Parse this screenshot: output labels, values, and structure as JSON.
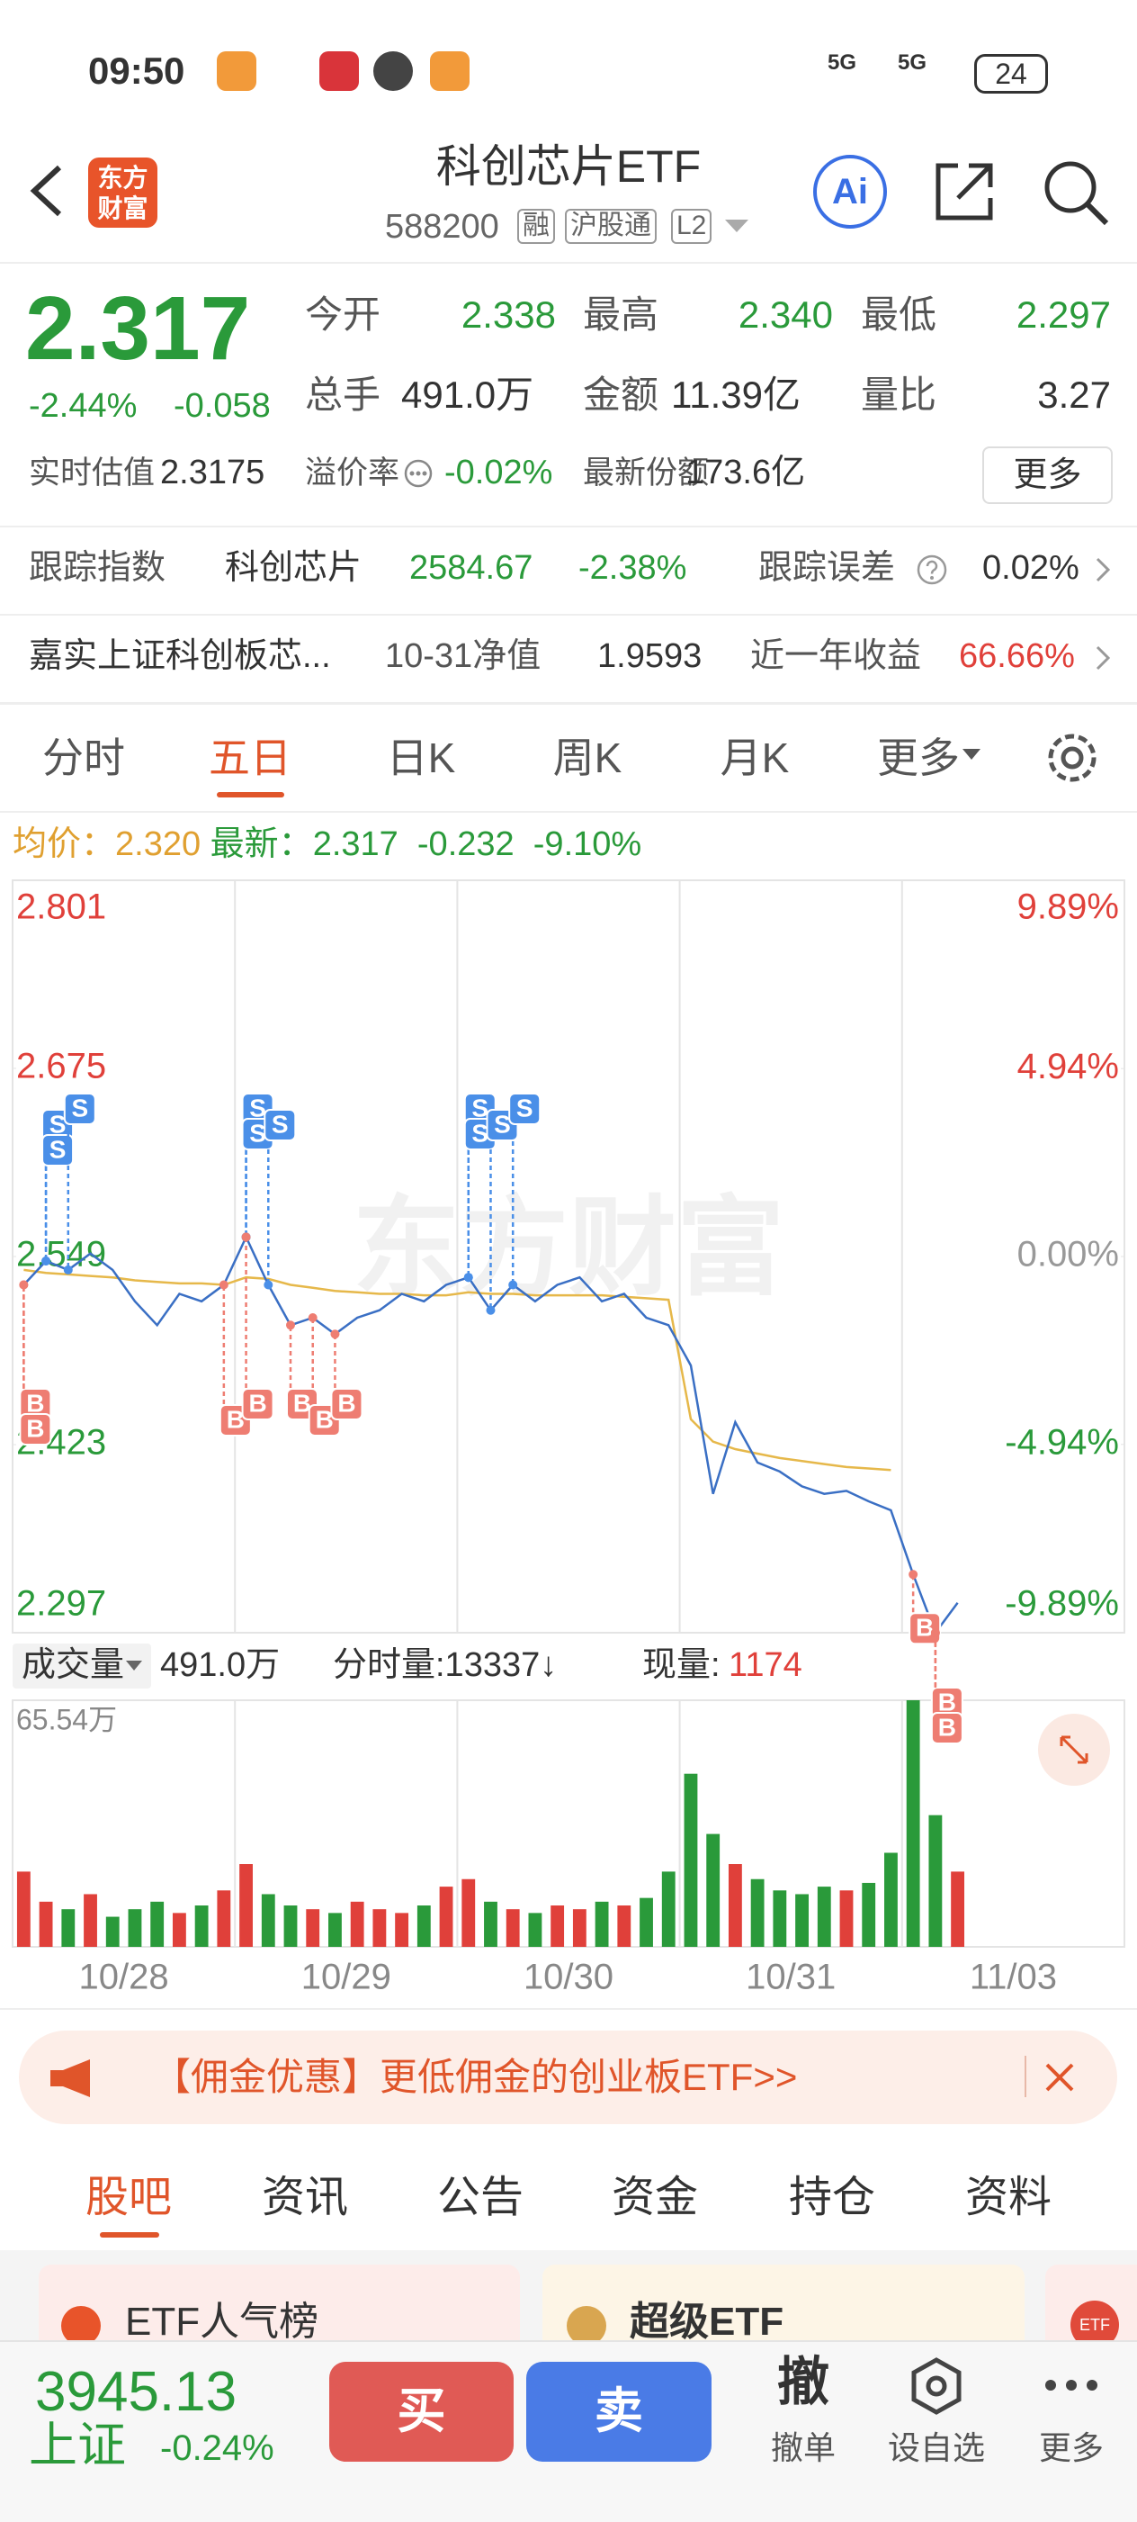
{
  "status_bar": {
    "time": "09:50",
    "network_1": "5G",
    "network_2": "5G",
    "battery": "24"
  },
  "header": {
    "logo_line_1": "东方",
    "logo_line_2": "财富",
    "title": "科创芯片ETF",
    "code": "588200",
    "badges": [
      "融",
      "沪股通",
      "L2"
    ],
    "ai_button": "Ai"
  },
  "quote": {
    "price": "2.317",
    "change_pct": "-2.44%",
    "change": "-0.058",
    "stats": [
      {
        "label": "今开",
        "value": "2.338"
      },
      {
        "label": "最高",
        "value": "2.340"
      },
      {
        "label": "最低",
        "value": "2.297"
      },
      {
        "label": "总手",
        "value": "491.0万"
      },
      {
        "label": "金额",
        "value": "11.39亿"
      },
      {
        "label": "量比",
        "value": "3.27"
      }
    ],
    "estimate_label": "实时估值",
    "estimate": "2.3175",
    "premium_label": "溢价率",
    "premium": "-0.02%",
    "shares_label": "最新份额",
    "shares": "173.6亿",
    "more_button": "更多"
  },
  "tracking": {
    "label": "跟踪指数",
    "index_name": "科创芯片",
    "index_value": "2584.67",
    "index_change": "-2.38%",
    "error_label": "跟踪误差",
    "error": "0.02%"
  },
  "fund_row": {
    "name": "嘉实上证科创板芯...",
    "nav_label": "10-31净值",
    "nav": "1.9593",
    "return_label": "近一年收益",
    "return": "66.66%"
  },
  "tabs": {
    "items": [
      "分时",
      "五日",
      "日K",
      "周K",
      "月K",
      "更多"
    ]
  },
  "chart": {
    "type": "line",
    "legend": {
      "avg_label": "均价：",
      "avg": "2.320",
      "latest_label": "最新：",
      "latest": "2.317",
      "change": "-0.232",
      "change_pct": "-9.10%"
    },
    "categories": [
      "10/28",
      "10/29",
      "10/30",
      "10/31",
      "11/03"
    ],
    "series": [
      {
        "color": "#3a6fc4",
        "values": [
          2.53,
          2.546,
          2.54,
          2.551,
          2.54,
          2.519,
          2.503,
          2.524,
          2.519,
          2.53,
          2.562,
          2.53,
          2.503,
          2.508,
          2.497,
          2.508,
          2.513,
          2.524,
          2.519,
          2.53,
          2.535,
          2.513,
          2.53,
          2.519,
          2.53,
          2.535,
          2.519,
          2.524,
          2.508,
          2.503,
          2.476,
          2.39,
          2.438,
          2.411,
          2.405,
          2.395,
          2.39,
          2.392,
          2.385,
          2.379,
          2.336,
          2.297,
          2.317
        ]
      },
      {
        "color": "#e6b84a",
        "values": [
          2.54,
          2.538,
          2.537,
          2.536,
          2.535,
          2.533,
          2.532,
          2.531,
          2.531,
          2.53,
          2.535,
          2.534,
          2.53,
          2.528,
          2.526,
          2.525,
          2.524,
          2.524,
          2.523,
          2.523,
          2.525,
          2.524,
          2.524,
          2.523,
          2.523,
          2.523,
          2.523,
          2.522,
          2.521,
          2.52,
          2.44,
          2.425,
          2.42,
          2.417,
          2.414,
          2.412,
          2.41,
          2.408,
          2.407,
          2.406,
          null,
          null,
          null
        ]
      }
    ],
    "ylim": [
      2.297,
      2.801
    ],
    "yticks": [
      2.801,
      2.675,
      2.549,
      2.423,
      2.297
    ],
    "y2lim": [
      -9.89,
      9.89
    ],
    "y2ticks": [
      {
        "value": 9.89,
        "label": "9.89%"
      },
      {
        "value": 4.94,
        "label": "4.94%"
      },
      {
        "value": 0,
        "label": "0.00%"
      },
      {
        "value": -4.94,
        "label": "-4.94%"
      },
      {
        "value": -9.89,
        "label": "-9.89%"
      }
    ],
    "watermark": "东方财富",
    "trade_markers": [
      {
        "label": "S",
        "point": 1
      },
      {
        "label": "S",
        "point": 1
      },
      {
        "label": "S",
        "point": 2
      },
      {
        "label": "S",
        "point": 10
      },
      {
        "label": "S",
        "point": 10
      },
      {
        "label": "S",
        "point": 11
      },
      {
        "label": "S",
        "point": 20
      },
      {
        "label": "S",
        "point": 20
      },
      {
        "label": "S",
        "point": 21
      },
      {
        "label": "S",
        "point": 22
      },
      {
        "label": "B",
        "point": 0
      },
      {
        "label": "B",
        "point": 0
      },
      {
        "label": "B",
        "point": 9
      },
      {
        "label": "B",
        "point": 10
      },
      {
        "label": "B",
        "point": 12
      },
      {
        "label": "B",
        "point": 13
      },
      {
        "label": "B",
        "point": 14
      },
      {
        "label": "B",
        "point": 40
      },
      {
        "label": "B",
        "point": 41
      },
      {
        "label": "B",
        "point": 41
      }
    ]
  },
  "volume": {
    "type": "bar",
    "label": "成交量",
    "total": "491.0万",
    "minute": "分时量:13337↓",
    "current_label": "现量:",
    "current": "1174",
    "values": [
      20,
      12,
      10,
      14,
      8,
      10,
      12,
      9,
      11,
      15,
      22,
      14,
      11,
      10,
      9,
      12,
      10,
      9,
      11,
      16,
      18,
      12,
      10,
      9,
      11,
      10,
      12,
      11,
      13,
      20,
      46,
      30,
      22,
      18,
      15,
      14,
      16,
      15,
      17,
      25,
      65.54,
      35,
      20
    ],
    "ylim": [
      0,
      65.54
    ],
    "yticks": [
      {
        "value": 65.54,
        "label": "65.54万"
      }
    ]
  },
  "banner": {
    "text": "【佣金优惠】更低佣金的创业板ETF>>"
  },
  "bottom_tabs": {
    "items": [
      "股吧",
      "资讯",
      "公告",
      "资金",
      "持仓",
      "资料"
    ]
  },
  "cards": {
    "items": [
      "ETF人气榜",
      "超级ETF"
    ],
    "badge": "ETF"
  },
  "bottom_bar": {
    "index_value": "3945.13",
    "index_name": "上证",
    "index_change": "-0.24%",
    "buy": "买",
    "sell": "卖",
    "cancel_icon": "撤",
    "cancel": "撤单",
    "watchlist": "设自选",
    "more": "更多"
  }
}
